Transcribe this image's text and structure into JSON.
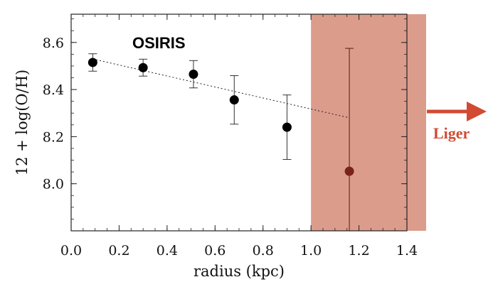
{
  "chart_data": {
    "type": "scatter",
    "xlabel": "radius (kpc)",
    "ylabel": "12 + log(O/H)",
    "xlim": [
      0.0,
      1.4
    ],
    "ylim": [
      7.8,
      8.72
    ],
    "x_ticks": [
      0.0,
      0.2,
      0.4,
      0.6,
      0.8,
      1.0,
      1.2,
      1.4
    ],
    "y_ticks": [
      8.0,
      8.2,
      8.4,
      8.6
    ],
    "x_tick_labels": [
      "0.0",
      "0.2",
      "0.4",
      "0.6",
      "0.8",
      "1.0",
      "1.2",
      "1.4"
    ],
    "y_tick_labels": [
      "8.0",
      "8.2",
      "8.4",
      "8.6"
    ],
    "grid": false,
    "series": [
      {
        "name": "OSIRIS",
        "color": "#000000",
        "points": [
          {
            "x": 0.09,
            "y": 8.515,
            "yerr_low": 8.478,
            "yerr_high": 8.552
          },
          {
            "x": 0.3,
            "y": 8.493,
            "yerr_low": 8.457,
            "yerr_high": 8.529
          },
          {
            "x": 0.51,
            "y": 8.465,
            "yerr_low": 8.407,
            "yerr_high": 8.523
          },
          {
            "x": 0.68,
            "y": 8.356,
            "yerr_low": 8.253,
            "yerr_high": 8.459
          },
          {
            "x": 0.9,
            "y": 8.24,
            "yerr_low": 8.103,
            "yerr_high": 8.377
          }
        ]
      },
      {
        "name": "Liger",
        "color": "#7a2318",
        "points": [
          {
            "x": 1.16,
            "y": 8.053,
            "yerr_low": 7.8,
            "yerr_high": 8.575
          }
        ]
      }
    ],
    "fit_line": {
      "x_start": 0.09,
      "y_start": 8.53,
      "x_end": 1.16,
      "y_end": 8.28,
      "style": "dotted"
    },
    "liger_region": {
      "x_start": 1.0,
      "color": "#dc9c8c"
    },
    "annotations": [
      {
        "text": "OSIRIS"
      },
      {
        "text": "Liger",
        "color": "#d14a32"
      }
    ]
  }
}
